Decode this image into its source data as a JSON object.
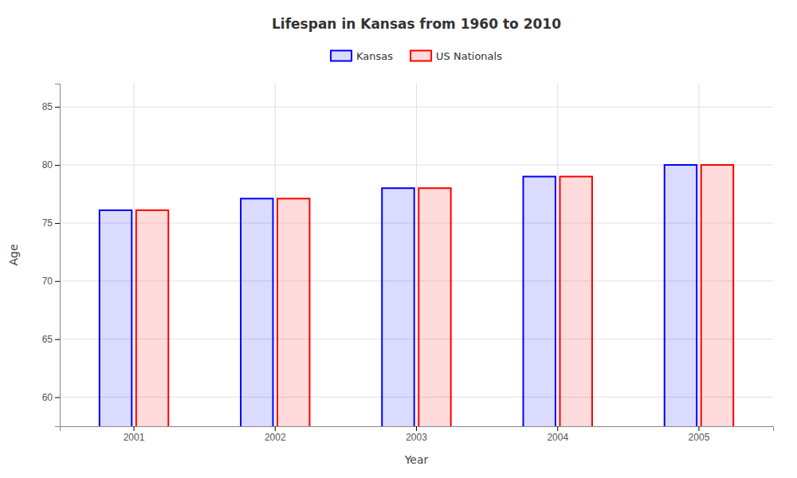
{
  "chart_data": {
    "type": "bar",
    "title": "Lifespan in Kansas from 1960 to 2010",
    "xlabel": "Year",
    "ylabel": "Age",
    "categories": [
      "2001",
      "2002",
      "2003",
      "2004",
      "2005"
    ],
    "series": [
      {
        "name": "Kansas",
        "color": "#0000ff",
        "values": [
          76.1,
          77.1,
          78.0,
          79.0,
          80.0
        ]
      },
      {
        "name": "US Nationals",
        "color": "#ff0000",
        "values": [
          76.1,
          77.1,
          78.0,
          79.0,
          80.0
        ]
      }
    ],
    "ylim": [
      57.5,
      87
    ],
    "yticks": [
      60,
      65,
      70,
      75,
      80,
      85
    ],
    "grid": true,
    "legend": "top"
  }
}
